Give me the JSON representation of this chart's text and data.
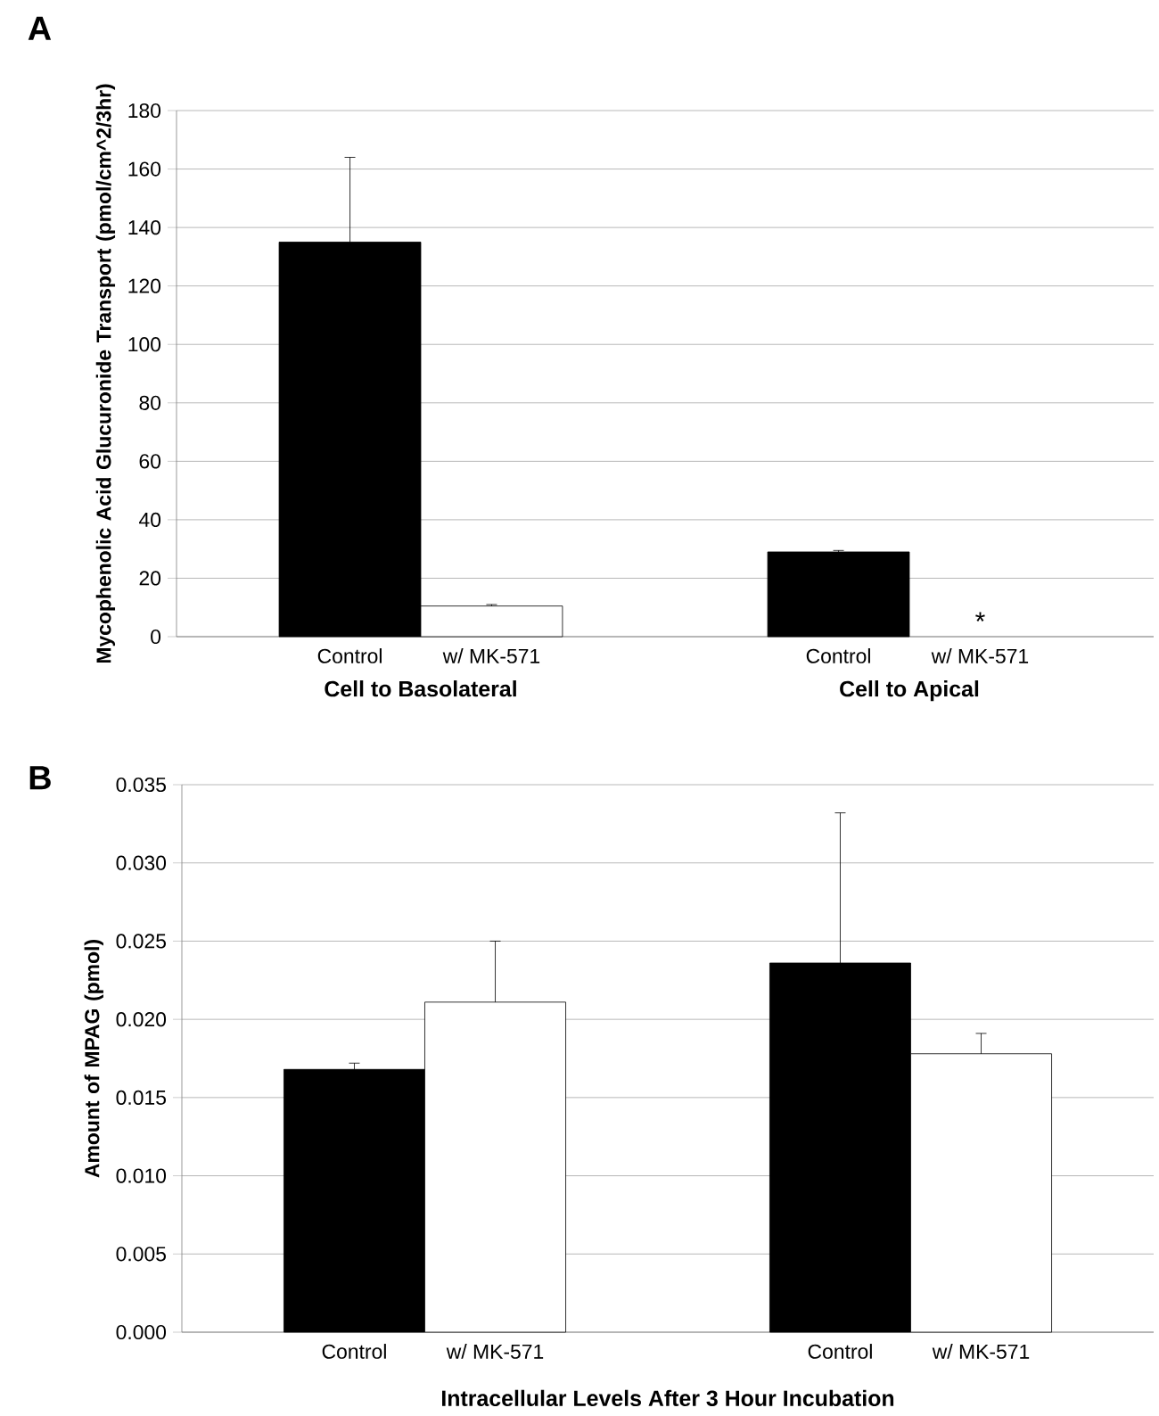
{
  "chart_data": [
    {
      "type": "bar",
      "title": "A",
      "ylabel": "Mycophenolic Acid Glucuronide Transport (pmol/cm^2/3hr)",
      "categories": [
        "Cell to Basolateral",
        "Cell to Apical"
      ],
      "series": [
        {
          "name": "Control",
          "color": "#000000",
          "values": [
            135,
            29
          ],
          "errors": [
            29,
            0.5
          ]
        },
        {
          "name": "w/ MK-571",
          "color": "#ffffff",
          "values": [
            10.5,
            null
          ],
          "errors": [
            0.5,
            null
          ]
        }
      ],
      "ylim": [
        0,
        180
      ],
      "yticks": [
        0,
        20,
        40,
        60,
        80,
        100,
        120,
        140,
        160,
        180
      ],
      "grid": "y",
      "annotations": [
        "*"
      ]
    },
    {
      "type": "bar",
      "title": "B",
      "ylabel": "Amount of MPAG (pmol)",
      "xlabel": "Intracellular Levels After 3 Hour Incubation",
      "categories": [
        null,
        null
      ],
      "series": [
        {
          "name": "Control",
          "color": "#000000",
          "values": [
            0.0168,
            0.0236
          ],
          "errors": [
            0.0004,
            0.0096
          ]
        },
        {
          "name": "w/ MK-571",
          "color": "#ffffff",
          "values": [
            0.0211,
            0.0178
          ],
          "errors": [
            0.0039,
            0.0013
          ]
        }
      ],
      "ylim": [
        0,
        0.035
      ],
      "yticks": [
        {
          "value": 0,
          "label": "0.000"
        },
        {
          "value": 0.005,
          "label": "0.005"
        },
        {
          "value": 0.01,
          "label": "0.010"
        },
        {
          "value": 0.015,
          "label": "0.015"
        },
        {
          "value": 0.02,
          "label": "0.020"
        },
        {
          "value": 0.025,
          "label": "0.025"
        },
        {
          "value": 0.03,
          "label": "0.030"
        },
        {
          "value": 0.035,
          "label": "0.035"
        }
      ],
      "grid": "y"
    }
  ]
}
